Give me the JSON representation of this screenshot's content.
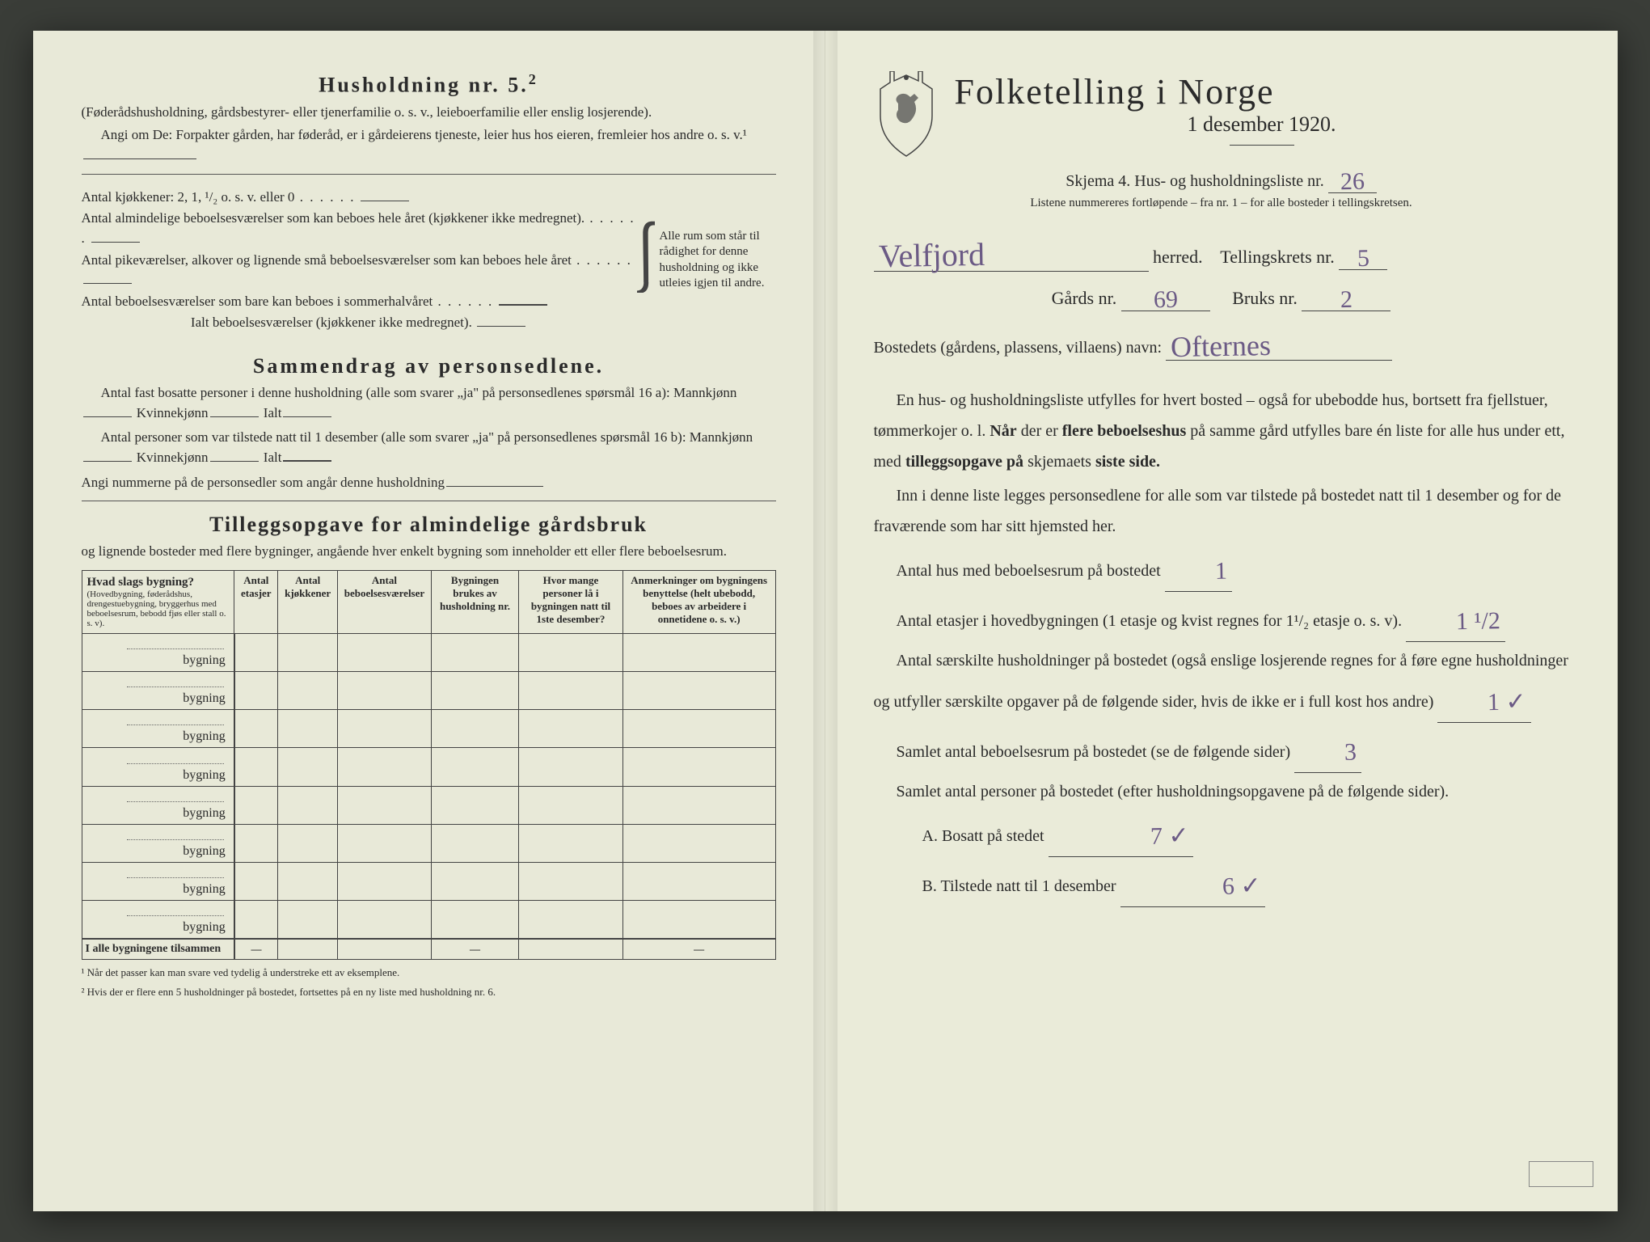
{
  "colors": {
    "paper": "#e8e9d8",
    "paper_right": "#eaebd9",
    "ink": "#2a2a2a",
    "handwriting": "#6b5a85",
    "background": "#3a3d38"
  },
  "left": {
    "heading": "Husholdning nr. 5.",
    "heading_sup": "2",
    "sub1": "(Føderådshusholdning, gårdsbestyrer- eller tjenerfamilie o. s. v., leieboerfamilie eller enslig losjerende).",
    "sub2": "Angi om De: Forpakter gården, har føderåd, er i gårdeierens tjeneste, leier hus hos eieren, fremleier hos andre o. s. v.¹",
    "kjokkener": "Antal kjøkkener: 2, 1, ¹/₂ o. s. v. eller 0",
    "alm_label": "Antal almindelige beboelsesværelser som kan beboes hele året (kjøkkener ikke medregnet).",
    "pike_label": "Antal pikeværelser, alkover og lignende små beboelsesværelser som kan beboes hele året",
    "sommer_label": "Antal beboelsesværelser som bare kan beboes i sommerhalvåret",
    "ialt_label": "Ialt beboelsesværelser (kjøkkener ikke medregnet).",
    "brace_text": "Alle rum som står til rådighet for denne husholdning og ikke utleies igjen til andre.",
    "sammendrag_heading": "Sammendrag av personsedlene.",
    "sammendrag_l1": "Antal fast bosatte personer i denne husholdning (alle som svarer „ja\" på personsedlenes spørsmål 16 a): Mannkjønn",
    "kvinne": "Kvinnekjønn",
    "ialt": "Ialt",
    "sammendrag_l2": "Antal personer som var tilstede natt til 1 desember (alle som svarer „ja\" på personsedlenes spørsmål 16 b): Mannkjønn",
    "angi_nummer": "Angi nummerne på de personsedler som angår denne husholdning",
    "tillegg_heading": "Tilleggsopgave for almindelige gårdsbruk",
    "tillegg_sub": "og lignende bosteder med flere bygninger, angående hver enkelt bygning som inneholder ett eller flere beboelsesrum.",
    "col1": "Hvad slags bygning?",
    "col1_sub": "(Hovedbygning, føderådshus, drengestuebygning, bryggerhus med beboelsesrum, bebodd fjøs eller stall o. s. v).",
    "col2": "Antal etasjer",
    "col3": "Antal kjøkkener",
    "col4": "Antal beboelsesværelser",
    "col5": "Bygningen brukes av husholdning nr.",
    "col6": "Hvor mange personer lå i bygningen natt til 1ste desember?",
    "col7": "Anmerkninger om bygningens benyttelse (helt ubebodd, beboes av arbeidere i onnetidene o. s. v.)",
    "row_suffix": "bygning",
    "row_count": 8,
    "sum_row": "I alle bygningene tilsammen",
    "footnote1": "¹ Når det passer kan man svare ved tydelig å understreke ett av eksemplene.",
    "footnote2": "² Hvis der er flere enn 5 husholdninger på bostedet, fortsettes på en ny liste med husholdning nr. 6."
  },
  "right": {
    "title": "Folketelling i Norge",
    "date": "1 desember 1920.",
    "skjema_line": "Skjema 4.  Hus- og husholdningsliste nr.",
    "liste_nr": "26",
    "listene_note": "Listene nummereres fortløpende – fra nr. 1 – for alle bosteder i tellingskretsen.",
    "herred_label": "herred.",
    "herred_value": "Velfjord",
    "tellingskrets_label": "Tellingskrets nr.",
    "tellingskrets_value": "5",
    "gards_label": "Gårds nr.",
    "gards_value": "69",
    "bruks_label": "Bruks nr.",
    "bruks_value": "2",
    "bosted_label": "Bostedets (gårdens, plassens, villaens) navn:",
    "bosted_value": "Ofternes",
    "para1": "En hus- og husholdningsliste utfylles for hvert bosted – også for ubebodde hus, bortsett fra fjellstuer, tømmerkojer o. l.  Når der er flere beboelseshus på samme gård utfylles bare én liste for alle hus under ett, med tilleggsopgave på skjemaets siste side.",
    "para2": "Inn i denne liste legges personsedlene for alle som var tilstede på bostedet natt til 1 desember og for de fraværende som har sitt hjemsted her.",
    "antal_hus_label": "Antal hus med beboelsesrum på bostedet",
    "antal_hus_value": "1",
    "etasjer_label": "Antal etasjer i hovedbygningen (1 etasje og kvist regnes for 1¹/₂ etasje o. s. v).",
    "etasjer_value": "1 ¹/2",
    "saerskilte_label": "Antal særskilte husholdninger på bostedet (også enslige losjerende regnes for å føre egne husholdninger og utfyller særskilte opgaver på de følgende sider, hvis de ikke er i full kost hos andre)",
    "saerskilte_value": "1 ✓",
    "samlet_rum_label": "Samlet antal beboelsesrum på bostedet (se de følgende sider)",
    "samlet_rum_value": "3",
    "samlet_pers_label": "Samlet antal personer på bostedet (efter husholdningsopgavene på de følgende sider).",
    "A_label": "A.  Bosatt på stedet",
    "A_value": "7 ✓",
    "B_label": "B.  Tilstede natt til 1 desember",
    "B_value": "6 ✓"
  }
}
